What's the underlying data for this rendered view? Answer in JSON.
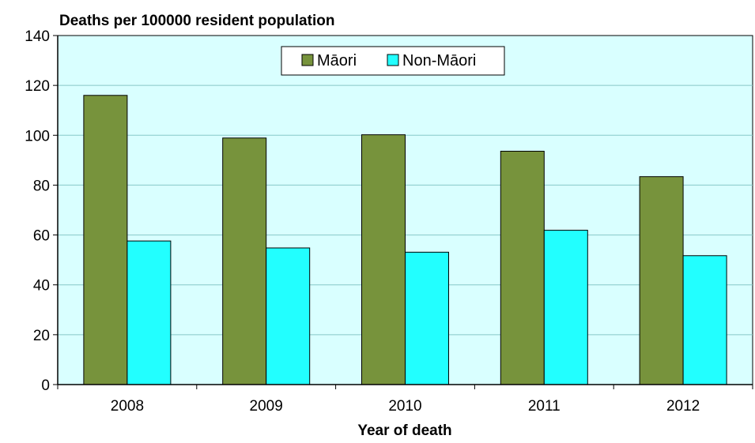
{
  "chart_data": {
    "type": "bar",
    "ylabel": "Deaths per 100000 resident population",
    "xlabel": "Year of death",
    "categories": [
      "2008",
      "2009",
      "2010",
      "2011",
      "2012"
    ],
    "series": [
      {
        "name": "Māori",
        "values": [
          116.0,
          98.9,
          100.2,
          93.6,
          83.4
        ],
        "color": "#77933c"
      },
      {
        "name": "Non-Māori",
        "values": [
          57.6,
          54.8,
          53.1,
          61.9,
          51.7
        ],
        "color": "#22ffff"
      }
    ],
    "ylim": [
      0,
      140
    ],
    "yticks": [
      0,
      20,
      40,
      60,
      80,
      100,
      120,
      140
    ],
    "grid": true,
    "legend_position": "top-center",
    "plot_background": "#d9ffff"
  }
}
